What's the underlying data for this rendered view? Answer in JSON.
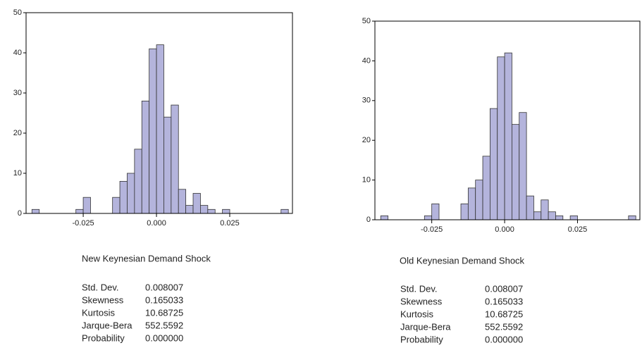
{
  "chart_data": [
    {
      "type": "histogram",
      "title": "New Keynesian Demand Shock",
      "bins": [
        -0.0425,
        -0.04,
        -0.0375,
        -0.035,
        -0.0325,
        -0.03,
        -0.0275,
        -0.025,
        -0.0225,
        -0.02,
        -0.0175,
        -0.015,
        -0.0125,
        -0.01,
        -0.0075,
        -0.005,
        -0.0025,
        0,
        0.0025,
        0.005,
        0.0075,
        0.01,
        0.0125,
        0.015,
        0.0175,
        0.02,
        0.0225,
        0.025,
        0.0275,
        0.03,
        0.0325,
        0.035,
        0.0375,
        0.04,
        0.0425,
        0.045
      ],
      "values": [
        1,
        0,
        0,
        0,
        0,
        0,
        1,
        4,
        0,
        0,
        0,
        4,
        8,
        10,
        16,
        28,
        41,
        42,
        24,
        27,
        6,
        2,
        5,
        2,
        1,
        0,
        1,
        0,
        0,
        0,
        0,
        0,
        0,
        0,
        1
      ],
      "color": "#b4b4dc",
      "xlim": [
        -0.0445,
        0.0464
      ],
      "ylim": [
        0,
        50
      ],
      "xticks": [
        -0.025,
        {
          "value": 0,
          "label": "0.000"
        },
        0.025
      ],
      "yticks": [
        0,
        10,
        20,
        30,
        40,
        50
      ],
      "stats": [
        [
          "Std. Dev.",
          "0.008007"
        ],
        [
          "Skewness",
          "0.165033"
        ],
        [
          "Kurtosis",
          "10.68725"
        ],
        [
          "Jarque-Bera",
          "552.5592"
        ],
        [
          "Probability",
          "0.000000"
        ]
      ]
    },
    {
      "type": "histogram",
      "title": "Old Keynesian Demand Shock",
      "bins": [
        -0.0425,
        -0.04,
        -0.0375,
        -0.035,
        -0.0325,
        -0.03,
        -0.0275,
        -0.025,
        -0.0225,
        -0.02,
        -0.0175,
        -0.015,
        -0.0125,
        -0.01,
        -0.0075,
        -0.005,
        -0.0025,
        0,
        0.0025,
        0.005,
        0.0075,
        0.01,
        0.0125,
        0.015,
        0.0175,
        0.02,
        0.0225,
        0.025,
        0.0275,
        0.03,
        0.0325,
        0.035,
        0.0375,
        0.04,
        0.0425,
        0.045
      ],
      "values": [
        1,
        0,
        0,
        0,
        0,
        0,
        1,
        4,
        0,
        0,
        0,
        4,
        8,
        10,
        16,
        28,
        41,
        42,
        24,
        27,
        6,
        2,
        5,
        2,
        1,
        0,
        1,
        0,
        0,
        0,
        0,
        0,
        0,
        0,
        1
      ],
      "color": "#b4b4dc",
      "xlim": [
        -0.0445,
        0.0464
      ],
      "ylim": [
        0,
        50
      ],
      "xticks": [
        -0.025,
        {
          "value": 0,
          "label": "0.000"
        },
        0.025
      ],
      "yticks": [
        0,
        10,
        20,
        30,
        40,
        50
      ],
      "stats": [
        [
          "Std. Dev.",
          "0.008007"
        ],
        [
          "Skewness",
          "0.165033"
        ],
        [
          "Kurtosis",
          "10.68725"
        ],
        [
          "Jarque-Bera",
          "552.5592"
        ],
        [
          "Probability",
          "0.000000"
        ]
      ]
    }
  ]
}
